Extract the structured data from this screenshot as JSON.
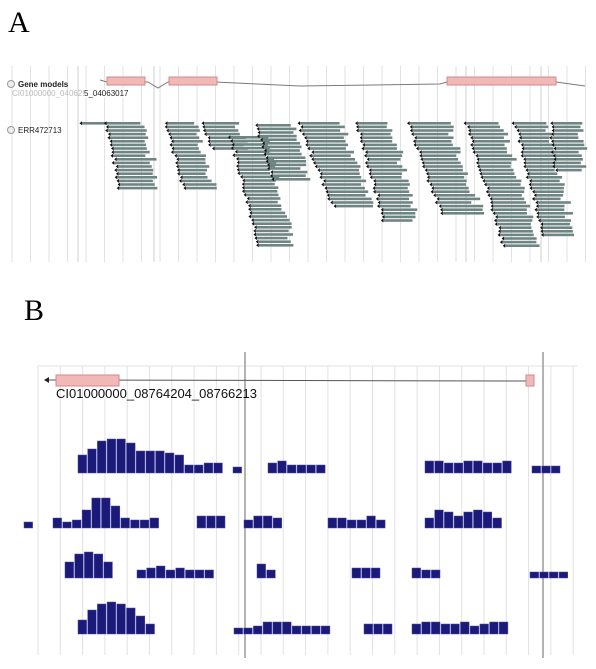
{
  "panels": {
    "a": {
      "letter": "A",
      "gene_track_label": "Gene models",
      "gene_id_visible": "5_04063017",
      "gene_id_faded": "CI01000000_04062975",
      "reads_track_label": "ERR472713"
    },
    "b": {
      "letter": "B",
      "gene_id": "CI01000000_08764204_08766213"
    }
  },
  "colors": {
    "exon_fill": "#f2b8b8",
    "exon_stroke": "#d08a8a",
    "read_fill": "#6f8583",
    "coverage_fill": "#1b1a78",
    "grid": "#e2e2e2",
    "grid_dark": "#9a9a9a"
  },
  "icons": {
    "track_handle": "circle-handle-icon",
    "strand_arrow": "arrow-left-icon"
  }
}
